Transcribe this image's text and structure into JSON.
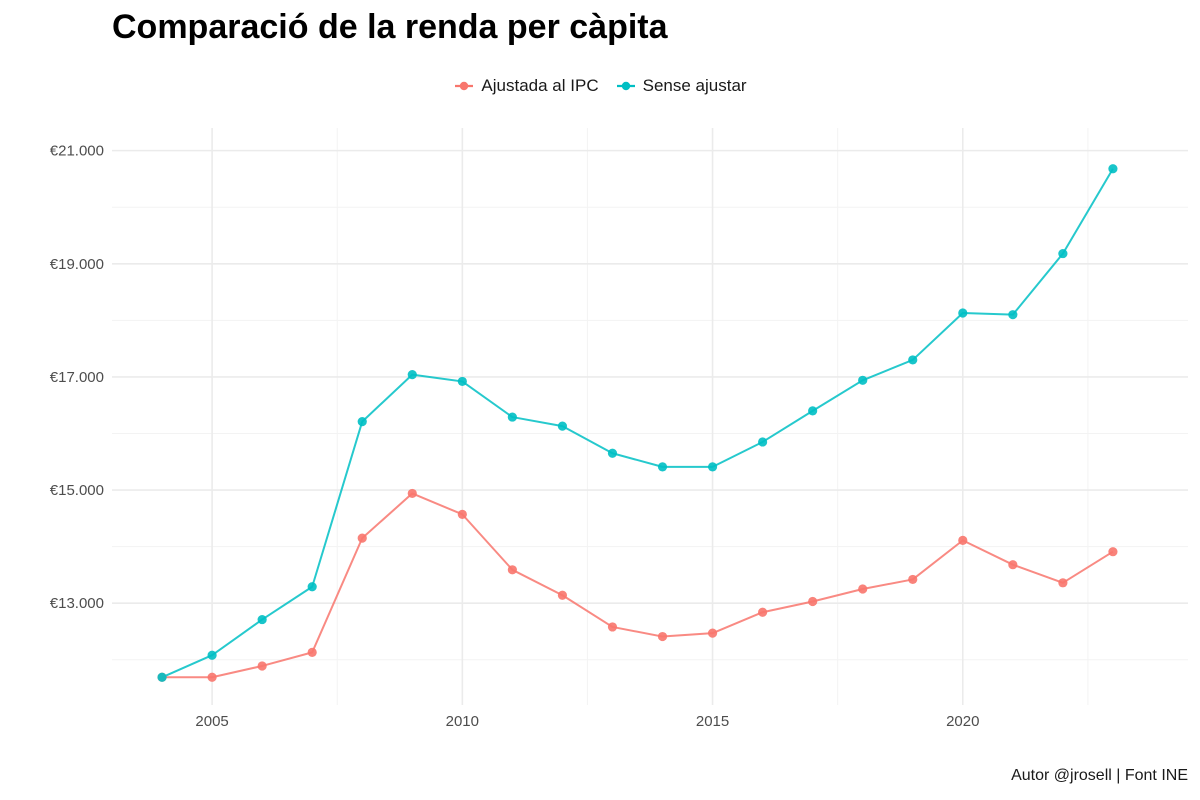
{
  "chart_data": {
    "type": "line",
    "title": "Comparació de la renda per càpita",
    "caption": "Autor @jrosell | Font INE",
    "legend_position": "top",
    "x": [
      2004,
      2005,
      2006,
      2007,
      2008,
      2009,
      2010,
      2011,
      2012,
      2013,
      2014,
      2015,
      2016,
      2017,
      2018,
      2019,
      2020,
      2021,
      2022,
      2023
    ],
    "series": [
      {
        "name": "Ajustada al IPC",
        "color": "#F8766D",
        "values": [
          11690,
          11690,
          11890,
          12130,
          14150,
          14940,
          14570,
          13590,
          13140,
          12580,
          12410,
          12470,
          12840,
          13030,
          13250,
          13420,
          14110,
          13680,
          13360,
          13910
        ]
      },
      {
        "name": "Sense ajustar",
        "color": "#00BFC4",
        "values": [
          11690,
          12080,
          12710,
          13290,
          16210,
          17040,
          16920,
          16290,
          16130,
          15650,
          15410,
          15410,
          15850,
          16400,
          16940,
          17300,
          18130,
          18100,
          19180,
          20680
        ]
      }
    ],
    "x_ticks": [
      2005,
      2010,
      2015,
      2020
    ],
    "x_tick_labels": [
      "2005",
      "2010",
      "2015",
      "2020"
    ],
    "y_ticks": [
      13000,
      15000,
      17000,
      19000,
      21000
    ],
    "y_tick_labels": [
      "€13.000",
      "€15.000",
      "€17.000",
      "€19.000",
      "€21.000"
    ],
    "xlim": [
      2003,
      2024.5
    ],
    "ylim": [
      11200,
      21400
    ],
    "grid": true,
    "colors": {
      "grid_major": "#EBEBEB",
      "grid_minor": "#F3F3F3"
    }
  }
}
